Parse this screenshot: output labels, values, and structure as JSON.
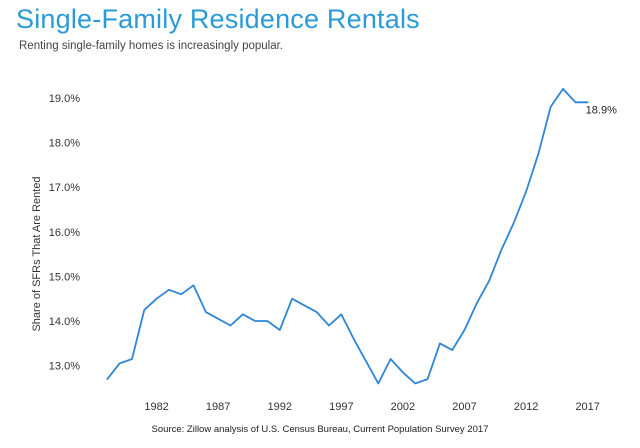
{
  "title": "Single-Family Residence Rentals",
  "subtitle": "Renting single-family homes is increasingly popular.",
  "source": "Source: Zillow analysis of U.S. Census Bureau, Current Population Survey 2017",
  "colors": {
    "title": "#2a9bd8",
    "line": "#2f86d6"
  },
  "chart_data": {
    "type": "line",
    "title": "Single-Family Residence Rentals",
    "subtitle": "Renting single-family homes is increasingly popular.",
    "xlabel": "",
    "ylabel": "Share of SFRs That Are Rented",
    "xlim": [
      1977,
      2018
    ],
    "ylim": [
      12.5,
      19.4
    ],
    "grid": false,
    "x_ticks": [
      1982,
      1987,
      1992,
      1997,
      2002,
      2007,
      2012,
      2017
    ],
    "y_ticks": [
      {
        "value": 13.0,
        "label": "13.0%"
      },
      {
        "value": 14.0,
        "label": "14.0%"
      },
      {
        "value": 15.0,
        "label": "15.0%"
      },
      {
        "value": 16.0,
        "label": "16.0%"
      },
      {
        "value": 17.0,
        "label": "17.0%"
      },
      {
        "value": 18.0,
        "label": "18.0%"
      },
      {
        "value": 19.0,
        "label": "19.0%"
      }
    ],
    "series": [
      {
        "x": [
          1978,
          1979,
          1980,
          1981,
          1982,
          1983,
          1984,
          1985,
          1986,
          1987,
          1988,
          1989,
          1990,
          1991,
          1992,
          1993,
          1994,
          1995,
          1996,
          1997,
          1998,
          1999,
          2000,
          2001,
          2002,
          2003,
          2004,
          2005,
          2006,
          2007,
          2008,
          2009,
          2010,
          2011,
          2012,
          2013,
          2014,
          2015,
          2016,
          2017
        ],
        "values": [
          12.7,
          13.05,
          13.15,
          14.25,
          14.5,
          14.7,
          14.6,
          14.8,
          14.2,
          14.05,
          13.9,
          14.15,
          14.0,
          14.0,
          13.8,
          14.5,
          14.35,
          14.2,
          13.9,
          14.15,
          13.6,
          13.1,
          12.6,
          13.15,
          12.85,
          12.6,
          12.7,
          13.5,
          13.35,
          13.8,
          14.4,
          14.9,
          15.6,
          16.2,
          16.9,
          17.75,
          18.8,
          19.2,
          18.9,
          18.9
        ]
      }
    ],
    "annotations": [
      {
        "text": "18.9%",
        "x": 2017,
        "y": 18.9
      }
    ]
  }
}
